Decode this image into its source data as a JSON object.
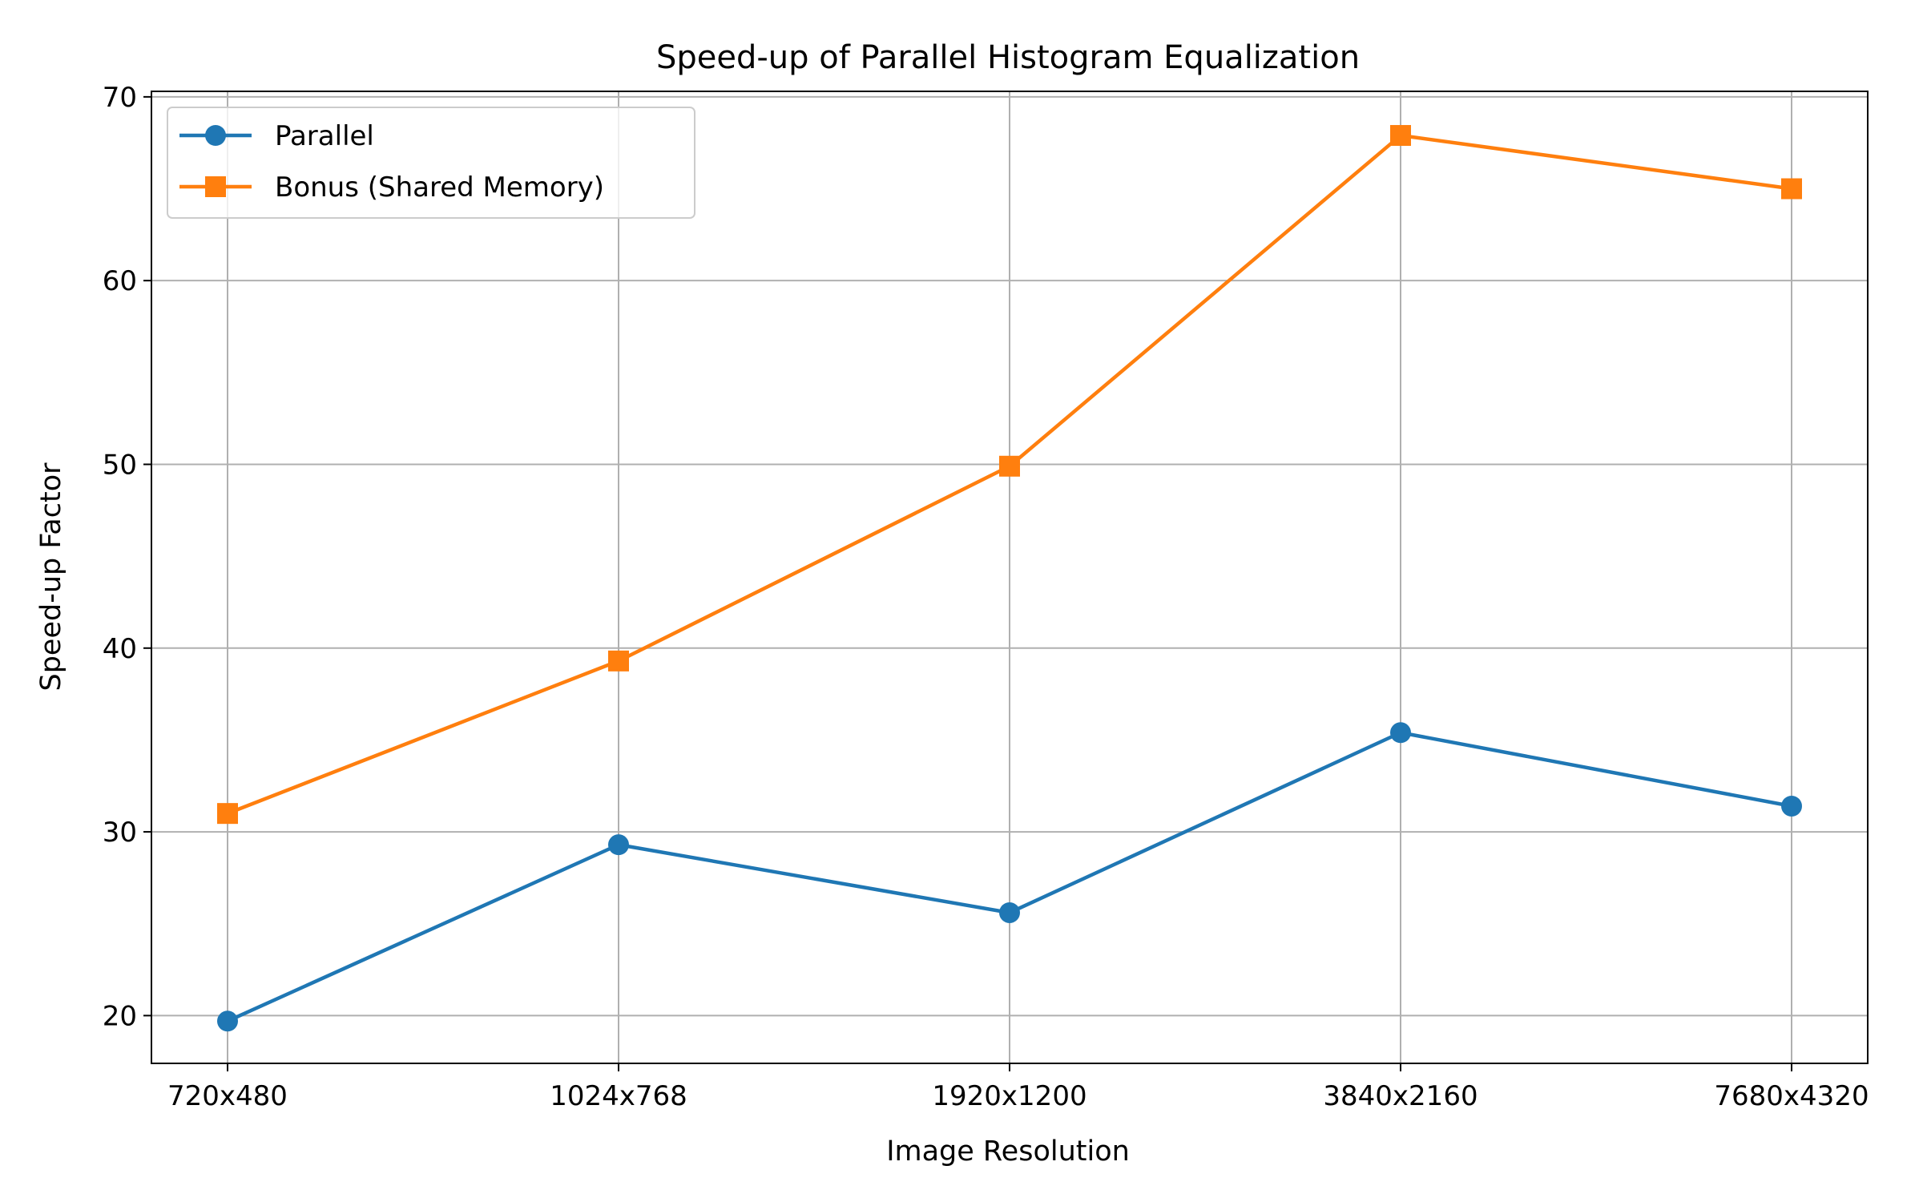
{
  "chart_data": {
    "type": "line",
    "title": "Speed-up of Parallel Histogram Equalization",
    "xlabel": "Image Resolution",
    "ylabel": "Speed-up Factor",
    "categories": [
      "720x480",
      "1024x768",
      "1920x1200",
      "3840x2160",
      "7680x4320"
    ],
    "yticks": [
      20,
      30,
      40,
      50,
      60,
      70
    ],
    "ylim": [
      17.4,
      70.3
    ],
    "grid": true,
    "legend_position": "top-left",
    "series": [
      {
        "name": "Parallel",
        "values": [
          19.7,
          29.3,
          25.6,
          35.4,
          31.4
        ],
        "color": "#1f77b4",
        "marker": "circle"
      },
      {
        "name": "Bonus (Shared Memory)",
        "values": [
          31.0,
          39.3,
          49.9,
          67.9,
          65.0
        ],
        "color": "#ff7f0e",
        "marker": "square"
      }
    ]
  }
}
